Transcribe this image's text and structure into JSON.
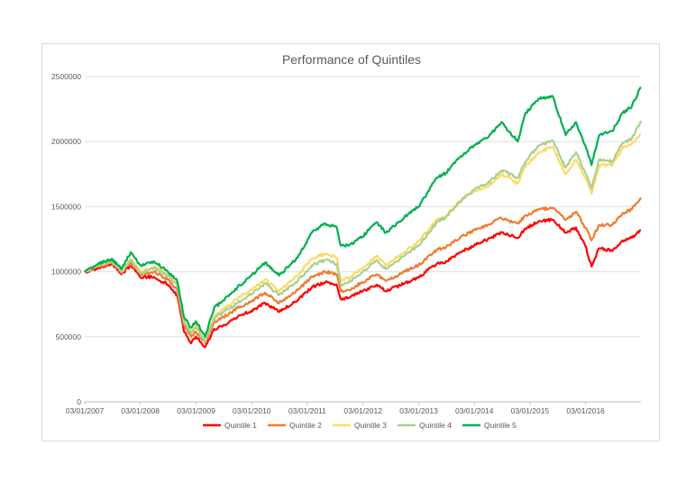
{
  "chart_data": {
    "type": "line",
    "title": "Performance of Quintiles",
    "xlabel": "",
    "ylabel": "",
    "ylim": [
      0,
      2500000
    ],
    "xlim": [
      "2007-01-03",
      "2016-12-31"
    ],
    "y_ticks": [
      "0",
      "500000",
      "1000000",
      "1500000",
      "2000000",
      "2500000"
    ],
    "x_ticks": [
      "03/01/2007",
      "03/01/2008",
      "03/01/2009",
      "03/01/2010",
      "03/01/2011",
      "03/01/2012",
      "03/01/2013",
      "03/01/2014",
      "03/01/2015",
      "03/01/2016"
    ],
    "grid": "horizontal",
    "legend_position": "bottom",
    "series": [
      {
        "name": "Quintile 1",
        "color": "#ff0000",
        "points": [
          [
            "2007-01-03",
            995000
          ],
          [
            "2007-04-01",
            1030000
          ],
          [
            "2007-07-01",
            1060000
          ],
          [
            "2007-09-01",
            980000
          ],
          [
            "2007-11-01",
            1050000
          ],
          [
            "2008-01-01",
            960000
          ],
          [
            "2008-04-01",
            960000
          ],
          [
            "2008-07-01",
            900000
          ],
          [
            "2008-09-01",
            820000
          ],
          [
            "2008-10-15",
            540000
          ],
          [
            "2008-12-01",
            450000
          ],
          [
            "2009-01-01",
            500000
          ],
          [
            "2009-03-03",
            420000
          ],
          [
            "2009-05-01",
            560000
          ],
          [
            "2009-07-01",
            590000
          ],
          [
            "2009-10-01",
            650000
          ],
          [
            "2010-01-01",
            700000
          ],
          [
            "2010-04-01",
            760000
          ],
          [
            "2010-07-01",
            690000
          ],
          [
            "2010-11-01",
            780000
          ],
          [
            "2011-02-01",
            880000
          ],
          [
            "2011-05-01",
            920000
          ],
          [
            "2011-07-15",
            900000
          ],
          [
            "2011-08-10",
            790000
          ],
          [
            "2011-10-01",
            800000
          ],
          [
            "2012-01-01",
            850000
          ],
          [
            "2012-04-01",
            900000
          ],
          [
            "2012-06-01",
            850000
          ],
          [
            "2012-10-01",
            910000
          ],
          [
            "2013-01-01",
            960000
          ],
          [
            "2013-05-01",
            1060000
          ],
          [
            "2013-07-01",
            1080000
          ],
          [
            "2013-10-01",
            1150000
          ],
          [
            "2014-01-01",
            1200000
          ],
          [
            "2014-04-01",
            1250000
          ],
          [
            "2014-07-01",
            1300000
          ],
          [
            "2014-10-15",
            1260000
          ],
          [
            "2014-12-01",
            1330000
          ],
          [
            "2015-03-01",
            1390000
          ],
          [
            "2015-06-01",
            1400000
          ],
          [
            "2015-08-25",
            1300000
          ],
          [
            "2015-11-01",
            1340000
          ],
          [
            "2016-01-01",
            1200000
          ],
          [
            "2016-02-11",
            1040000
          ],
          [
            "2016-04-01",
            1180000
          ],
          [
            "2016-06-27",
            1160000
          ],
          [
            "2016-09-01",
            1240000
          ],
          [
            "2016-11-01",
            1260000
          ],
          [
            "2016-12-31",
            1320000
          ]
        ]
      },
      {
        "name": "Quintile 2",
        "color": "#ed7d31",
        "points": [
          [
            "2007-01-03",
            1000000
          ],
          [
            "2007-04-01",
            1040000
          ],
          [
            "2007-07-01",
            1070000
          ],
          [
            "2007-09-01",
            990000
          ],
          [
            "2007-11-01",
            1070000
          ],
          [
            "2008-01-01",
            980000
          ],
          [
            "2008-04-01",
            1000000
          ],
          [
            "2008-07-01",
            940000
          ],
          [
            "2008-09-01",
            860000
          ],
          [
            "2008-10-15",
            590000
          ],
          [
            "2008-12-01",
            500000
          ],
          [
            "2009-01-01",
            540000
          ],
          [
            "2009-03-03",
            450000
          ],
          [
            "2009-05-01",
            610000
          ],
          [
            "2009-07-01",
            650000
          ],
          [
            "2009-10-01",
            720000
          ],
          [
            "2010-01-01",
            770000
          ],
          [
            "2010-04-01",
            840000
          ],
          [
            "2010-07-01",
            760000
          ],
          [
            "2010-11-01",
            860000
          ],
          [
            "2011-02-01",
            960000
          ],
          [
            "2011-05-01",
            1000000
          ],
          [
            "2011-07-15",
            980000
          ],
          [
            "2011-08-10",
            850000
          ],
          [
            "2011-10-01",
            860000
          ],
          [
            "2012-01-01",
            920000
          ],
          [
            "2012-04-01",
            980000
          ],
          [
            "2012-06-01",
            930000
          ],
          [
            "2012-10-01",
            1000000
          ],
          [
            "2013-01-01",
            1050000
          ],
          [
            "2013-05-01",
            1170000
          ],
          [
            "2013-07-01",
            1190000
          ],
          [
            "2013-10-01",
            1260000
          ],
          [
            "2014-01-01",
            1320000
          ],
          [
            "2014-04-01",
            1360000
          ],
          [
            "2014-07-01",
            1410000
          ],
          [
            "2014-10-15",
            1370000
          ],
          [
            "2014-12-01",
            1430000
          ],
          [
            "2015-03-01",
            1480000
          ],
          [
            "2015-06-01",
            1490000
          ],
          [
            "2015-08-25",
            1400000
          ],
          [
            "2015-11-01",
            1460000
          ],
          [
            "2016-01-01",
            1340000
          ],
          [
            "2016-02-11",
            1240000
          ],
          [
            "2016-04-01",
            1360000
          ],
          [
            "2016-06-27",
            1360000
          ],
          [
            "2016-09-01",
            1450000
          ],
          [
            "2016-11-01",
            1480000
          ],
          [
            "2016-12-31",
            1570000
          ]
        ]
      },
      {
        "name": "Quintile 3",
        "color": "#ffd966",
        "points": [
          [
            "2007-01-03",
            1000000
          ],
          [
            "2007-04-01",
            1050000
          ],
          [
            "2007-07-01",
            1090000
          ],
          [
            "2007-09-01",
            1000000
          ],
          [
            "2007-11-01",
            1100000
          ],
          [
            "2008-01-01",
            1000000
          ],
          [
            "2008-04-01",
            1040000
          ],
          [
            "2008-07-01",
            980000
          ],
          [
            "2008-09-01",
            920000
          ],
          [
            "2008-10-15",
            620000
          ],
          [
            "2008-12-01",
            540000
          ],
          [
            "2009-01-01",
            590000
          ],
          [
            "2009-03-03",
            470000
          ],
          [
            "2009-05-01",
            660000
          ],
          [
            "2009-07-01",
            710000
          ],
          [
            "2009-10-01",
            790000
          ],
          [
            "2010-01-01",
            860000
          ],
          [
            "2010-04-01",
            940000
          ],
          [
            "2010-07-01",
            850000
          ],
          [
            "2010-11-01",
            970000
          ],
          [
            "2011-02-01",
            1100000
          ],
          [
            "2011-05-01",
            1140000
          ],
          [
            "2011-07-15",
            1110000
          ],
          [
            "2011-08-10",
            930000
          ],
          [
            "2011-10-01",
            950000
          ],
          [
            "2012-01-01",
            1030000
          ],
          [
            "2012-04-01",
            1120000
          ],
          [
            "2012-06-01",
            1050000
          ],
          [
            "2012-10-01",
            1150000
          ],
          [
            "2013-01-01",
            1230000
          ],
          [
            "2013-05-01",
            1400000
          ],
          [
            "2013-07-01",
            1430000
          ],
          [
            "2013-10-01",
            1540000
          ],
          [
            "2014-01-01",
            1620000
          ],
          [
            "2014-04-01",
            1660000
          ],
          [
            "2014-07-01",
            1750000
          ],
          [
            "2014-10-15",
            1680000
          ],
          [
            "2014-12-01",
            1800000
          ],
          [
            "2015-03-01",
            1920000
          ],
          [
            "2015-06-01",
            1960000
          ],
          [
            "2015-08-25",
            1750000
          ],
          [
            "2015-11-01",
            1860000
          ],
          [
            "2016-01-01",
            1720000
          ],
          [
            "2016-02-11",
            1600000
          ],
          [
            "2016-04-01",
            1820000
          ],
          [
            "2016-06-27",
            1820000
          ],
          [
            "2016-09-01",
            1950000
          ],
          [
            "2016-11-01",
            1980000
          ],
          [
            "2016-12-31",
            2060000
          ]
        ]
      },
      {
        "name": "Quintile 4",
        "color": "#a9d18e",
        "points": [
          [
            "2007-01-03",
            1000000
          ],
          [
            "2007-04-01",
            1050000
          ],
          [
            "2007-07-01",
            1080000
          ],
          [
            "2007-09-01",
            1000000
          ],
          [
            "2007-11-01",
            1090000
          ],
          [
            "2008-01-01",
            990000
          ],
          [
            "2008-04-01",
            1030000
          ],
          [
            "2008-07-01",
            970000
          ],
          [
            "2008-09-01",
            900000
          ],
          [
            "2008-10-15",
            610000
          ],
          [
            "2008-12-01",
            530000
          ],
          [
            "2009-01-01",
            570000
          ],
          [
            "2009-03-03",
            460000
          ],
          [
            "2009-05-01",
            640000
          ],
          [
            "2009-07-01",
            690000
          ],
          [
            "2009-10-01",
            760000
          ],
          [
            "2010-01-01",
            830000
          ],
          [
            "2010-04-01",
            910000
          ],
          [
            "2010-07-01",
            820000
          ],
          [
            "2010-11-01",
            930000
          ],
          [
            "2011-02-01",
            1050000
          ],
          [
            "2011-05-01",
            1090000
          ],
          [
            "2011-07-15",
            1060000
          ],
          [
            "2011-08-10",
            900000
          ],
          [
            "2011-10-01",
            920000
          ],
          [
            "2012-01-01",
            1000000
          ],
          [
            "2012-04-01",
            1090000
          ],
          [
            "2012-06-01",
            1020000
          ],
          [
            "2012-10-01",
            1120000
          ],
          [
            "2013-01-01",
            1200000
          ],
          [
            "2013-05-01",
            1380000
          ],
          [
            "2013-07-01",
            1420000
          ],
          [
            "2013-10-01",
            1540000
          ],
          [
            "2014-01-01",
            1630000
          ],
          [
            "2014-04-01",
            1680000
          ],
          [
            "2014-07-01",
            1780000
          ],
          [
            "2014-10-15",
            1720000
          ],
          [
            "2014-12-01",
            1840000
          ],
          [
            "2015-03-01",
            1970000
          ],
          [
            "2015-06-01",
            2010000
          ],
          [
            "2015-08-25",
            1800000
          ],
          [
            "2015-11-01",
            1920000
          ],
          [
            "2016-01-01",
            1760000
          ],
          [
            "2016-02-11",
            1640000
          ],
          [
            "2016-04-01",
            1860000
          ],
          [
            "2016-06-27",
            1850000
          ],
          [
            "2016-09-01",
            1990000
          ],
          [
            "2016-11-01",
            2020000
          ],
          [
            "2016-12-31",
            2160000
          ]
        ]
      },
      {
        "name": "Quintile 5",
        "color": "#00b050",
        "points": [
          [
            "2007-01-03",
            1000000
          ],
          [
            "2007-04-01",
            1060000
          ],
          [
            "2007-07-01",
            1100000
          ],
          [
            "2007-09-01",
            1020000
          ],
          [
            "2007-11-01",
            1150000
          ],
          [
            "2008-01-01",
            1050000
          ],
          [
            "2008-04-01",
            1080000
          ],
          [
            "2008-07-01",
            1000000
          ],
          [
            "2008-09-01",
            930000
          ],
          [
            "2008-10-15",
            650000
          ],
          [
            "2008-12-01",
            570000
          ],
          [
            "2009-01-01",
            620000
          ],
          [
            "2009-03-03",
            500000
          ],
          [
            "2009-05-01",
            720000
          ],
          [
            "2009-07-01",
            780000
          ],
          [
            "2009-10-01",
            880000
          ],
          [
            "2010-01-01",
            970000
          ],
          [
            "2010-04-01",
            1070000
          ],
          [
            "2010-07-01",
            970000
          ],
          [
            "2010-11-01",
            1110000
          ],
          [
            "2011-02-01",
            1300000
          ],
          [
            "2011-05-01",
            1370000
          ],
          [
            "2011-07-15",
            1340000
          ],
          [
            "2011-08-10",
            1200000
          ],
          [
            "2011-10-01",
            1200000
          ],
          [
            "2012-01-01",
            1270000
          ],
          [
            "2012-04-01",
            1380000
          ],
          [
            "2012-06-01",
            1300000
          ],
          [
            "2012-10-01",
            1420000
          ],
          [
            "2013-01-01",
            1500000
          ],
          [
            "2013-05-01",
            1720000
          ],
          [
            "2013-07-01",
            1760000
          ],
          [
            "2013-10-01",
            1880000
          ],
          [
            "2014-01-01",
            1970000
          ],
          [
            "2014-04-01",
            2030000
          ],
          [
            "2014-07-01",
            2150000
          ],
          [
            "2014-10-15",
            2000000
          ],
          [
            "2014-12-01",
            2210000
          ],
          [
            "2015-03-01",
            2330000
          ],
          [
            "2015-06-01",
            2350000
          ],
          [
            "2015-08-25",
            2050000
          ],
          [
            "2015-11-01",
            2150000
          ],
          [
            "2016-01-01",
            1970000
          ],
          [
            "2016-02-11",
            1820000
          ],
          [
            "2016-04-01",
            2050000
          ],
          [
            "2016-06-27",
            2080000
          ],
          [
            "2016-09-01",
            2220000
          ],
          [
            "2016-11-01",
            2270000
          ],
          [
            "2016-12-31",
            2420000
          ]
        ]
      }
    ]
  }
}
